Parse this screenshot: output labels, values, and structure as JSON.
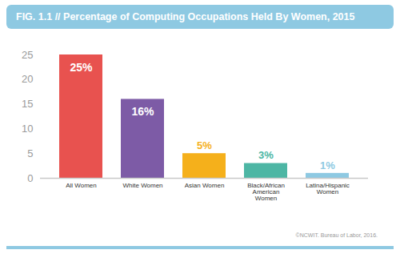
{
  "chart_data": {
    "type": "bar",
    "title": "FIG. 1.1 // Percentage of Computing Occupations Held By Women, 2015",
    "caption": "©NCWIT. Bureau of Labor, 2016.",
    "categories": [
      "All Women",
      "White Women",
      "Asian Women",
      "Black/African American Women",
      "Latina/Hispanic Women"
    ],
    "values": [
      25,
      16,
      5,
      3,
      1
    ],
    "value_labels": [
      "25%",
      "16%",
      "5%",
      "3%",
      "1%"
    ],
    "colors": [
      "#e8524f",
      "#7d5ba6",
      "#f5b01b",
      "#4db6a4",
      "#8ec9e2"
    ],
    "ylim": [
      0,
      25
    ],
    "yticks": [
      0,
      5,
      10,
      15,
      20,
      25
    ],
    "grid": false,
    "data_labels": true
  }
}
